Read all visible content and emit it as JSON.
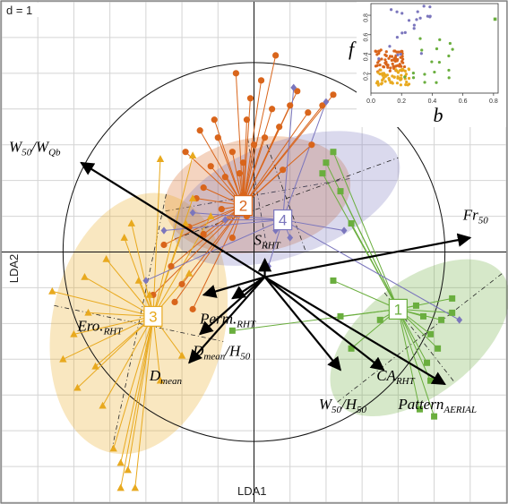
{
  "chart_data": {
    "type": "scatter",
    "grid_scale_label": "d = 1",
    "xlabel": "LDA1",
    "ylabel": "LDA2",
    "xlim": [
      -7,
      7
    ],
    "ylim": [
      -7,
      7
    ],
    "grid": true,
    "correlation_circle_radius": 5.3,
    "groups": [
      {
        "label": "1",
        "color": "#6aae3e",
        "marker": "square",
        "centroid": [
          4.0,
          -1.6
        ],
        "ellipse": {
          "cx": 4.6,
          "cy": -2.4,
          "rx": 2.9,
          "ry": 1.6,
          "angle_deg": -38
        },
        "points": [
          [
            2.2,
            2.8
          ],
          [
            2.0,
            2.5
          ],
          [
            2.4,
            1.7
          ],
          [
            1.9,
            2.2
          ],
          [
            2.7,
            0.8
          ],
          [
            2.2,
            -0.8
          ],
          [
            2.4,
            -1.8
          ],
          [
            2.7,
            -2.7
          ],
          [
            3.5,
            -1.9
          ],
          [
            4.5,
            -1.5
          ],
          [
            4.7,
            -1.8
          ],
          [
            4.9,
            -2.3
          ],
          [
            5.2,
            -1.9
          ],
          [
            5.5,
            -1.3
          ],
          [
            5.1,
            -2.7
          ],
          [
            4.8,
            -3.1
          ],
          [
            4.9,
            -3.6
          ],
          [
            4.6,
            -4.4
          ],
          [
            5.0,
            -4.6
          ],
          [
            -0.6,
            -2.2
          ],
          [
            5.5,
            -1.7
          ]
        ]
      },
      {
        "label": "2",
        "color": "#d9651b",
        "marker": "circle",
        "centroid": [
          -0.3,
          1.3
        ],
        "ellipse": {
          "cx": 0.1,
          "cy": 1.6,
          "rx": 2.6,
          "ry": 1.6,
          "angle_deg": -10
        },
        "points": [
          [
            0.6,
            5.5
          ],
          [
            -0.5,
            5.0
          ],
          [
            0.2,
            4.8
          ],
          [
            1.2,
            4.5
          ],
          [
            -0.1,
            4.3
          ],
          [
            0.5,
            4.0
          ],
          [
            1.0,
            4.1
          ],
          [
            0.7,
            3.5
          ],
          [
            -1.0,
            3.2
          ],
          [
            -0.6,
            2.8
          ],
          [
            0.0,
            3.0
          ],
          [
            -1.2,
            2.4
          ],
          [
            -0.8,
            2.1
          ],
          [
            -1.4,
            1.8
          ],
          [
            -0.3,
            1.6
          ],
          [
            -0.9,
            1.2
          ],
          [
            -1.6,
            1.5
          ],
          [
            -0.2,
            1.0
          ],
          [
            -1.8,
            0.7
          ],
          [
            -1.4,
            0.5
          ],
          [
            -2.5,
            0.2
          ],
          [
            -2.3,
            -0.4
          ],
          [
            -0.6,
            0.4
          ],
          [
            -0.4,
            2.2
          ],
          [
            0.3,
            3.2
          ],
          [
            0.8,
            2.3
          ],
          [
            1.5,
            3.9
          ],
          [
            1.9,
            4.1
          ],
          [
            2.2,
            4.4
          ],
          [
            -0.3,
            2.5
          ],
          [
            -2.0,
            -0.9
          ],
          [
            -2.2,
            -1.4
          ],
          [
            -1.7,
            -1.6
          ],
          [
            -2.8,
            -1.2
          ],
          [
            1.6,
            3.0
          ],
          [
            -1.1,
            3.7
          ],
          [
            -0.2,
            3.7
          ],
          [
            -1.9,
            2.8
          ],
          [
            -1.5,
            3.4
          ]
        ]
      },
      {
        "label": "3",
        "color": "#e8a91e",
        "marker": "triangle",
        "centroid": [
          -2.8,
          -1.8
        ],
        "ellipse": {
          "cx": -3.2,
          "cy": -2.0,
          "rx": 2.4,
          "ry": 3.7,
          "angle_deg": 12
        },
        "points": [
          [
            -1.7,
            2.7
          ],
          [
            -2.6,
            2.6
          ],
          [
            -3.4,
            0.8
          ],
          [
            -3.6,
            0.4
          ],
          [
            -4.1,
            -0.2
          ],
          [
            -4.7,
            -0.7
          ],
          [
            -5.6,
            -1.1
          ],
          [
            -4.6,
            -1.7
          ],
          [
            -5.0,
            -2.3
          ],
          [
            -5.3,
            -3.0
          ],
          [
            -4.4,
            -3.2
          ],
          [
            -4.9,
            -3.8
          ],
          [
            -4.2,
            -4.3
          ],
          [
            -3.9,
            -5.5
          ],
          [
            -3.7,
            -5.9
          ],
          [
            -3.5,
            -6.1
          ],
          [
            -3.7,
            -6.6
          ],
          [
            -3.3,
            -6.6
          ],
          [
            -2.6,
            -3.6
          ],
          [
            -2.0,
            -2.9
          ],
          [
            -1.8,
            -0.6
          ],
          [
            -2.9,
            -1.2
          ],
          [
            -3.2,
            -0.8
          ],
          [
            -1.2,
            1.0
          ],
          [
            -1.7,
            1.5
          ],
          [
            -1.9,
            0.8
          ]
        ]
      },
      {
        "label": "4",
        "color": "#7b76bd",
        "marker": "diamond",
        "centroid": [
          0.8,
          0.9
        ],
        "ellipse": {
          "cx": 0.9,
          "cy": 1.5,
          "rx": 3.3,
          "ry": 1.6,
          "angle_deg": -20
        },
        "points": [
          [
            1.1,
            4.6
          ],
          [
            2.0,
            4.2
          ],
          [
            -1.7,
            1.1
          ],
          [
            -0.8,
            0.9
          ],
          [
            0.4,
            -0.4
          ],
          [
            -3.0,
            -0.8
          ],
          [
            0.6,
            0.6
          ],
          [
            1.0,
            0.4
          ],
          [
            2.5,
            0.6
          ],
          [
            5.7,
            -1.9
          ],
          [
            -2.5,
            0.6
          ]
        ]
      }
    ],
    "arrow_origin": [
      0.3,
      -0.7
    ],
    "variables": [
      {
        "name": "W",
        "sub": "50",
        "name2": "/W",
        "sub2": "Qb",
        "x": -4.8,
        "y": 2.5,
        "label_x": -6.8,
        "label_y": 2.8
      },
      {
        "name": "Fr",
        "sub": "50",
        "x": 6.0,
        "y": 0.4,
        "label_x": 5.8,
        "label_y": 0.9
      },
      {
        "name": "S",
        "sub": "RHT",
        "x": 0.3,
        "y": -0.2,
        "label_x": 0.0,
        "label_y": 0.2
      },
      {
        "name": "Perm.",
        "sub": "RHT",
        "x": -0.6,
        "y": -1.3,
        "label_x": -1.5,
        "label_y": -2.0
      },
      {
        "name": "Ero.",
        "sub": "RHT",
        "x": -1.4,
        "y": -1.2,
        "label_x": -4.9,
        "label_y": -2.2
      },
      {
        "name": "D",
        "sub": "mean",
        "name2": "/H",
        "sub2": "50",
        "x": -1.5,
        "y": -2.3,
        "label_x": -1.7,
        "label_y": -2.9
      },
      {
        "name": "D",
        "sub": "mean",
        "x": -1.8,
        "y": -3.1,
        "label_x": -2.9,
        "label_y": -3.6
      },
      {
        "name": "CA",
        "sub": "RHT",
        "x": 3.6,
        "y": -3.3,
        "label_x": 3.4,
        "label_y": -3.6
      },
      {
        "name": "W",
        "sub": "50",
        "name2": "/H",
        "sub2": "50",
        "x": 2.4,
        "y": -3.3,
        "label_x": 1.8,
        "label_y": -4.4
      },
      {
        "name": "Pattern",
        "sub": "AERIAL",
        "x": 5.3,
        "y": -3.7,
        "label_x": 4.0,
        "label_y": -4.4
      }
    ],
    "inset": {
      "xlabel": "b",
      "ylabel": "f",
      "xlim": [
        0,
        0.83
      ],
      "ylim": [
        0,
        0.92
      ],
      "xticks": [
        "0.0",
        "0.2",
        "0.4",
        "0.6",
        "0.8"
      ],
      "yticks": [
        "0.2",
        "0.4",
        "0.6",
        "0.8"
      ],
      "xtick_values": [
        0.0,
        0.2,
        0.4,
        0.6,
        0.8
      ],
      "ytick_values": [
        0.2,
        0.4,
        0.6,
        0.8
      ]
    }
  }
}
